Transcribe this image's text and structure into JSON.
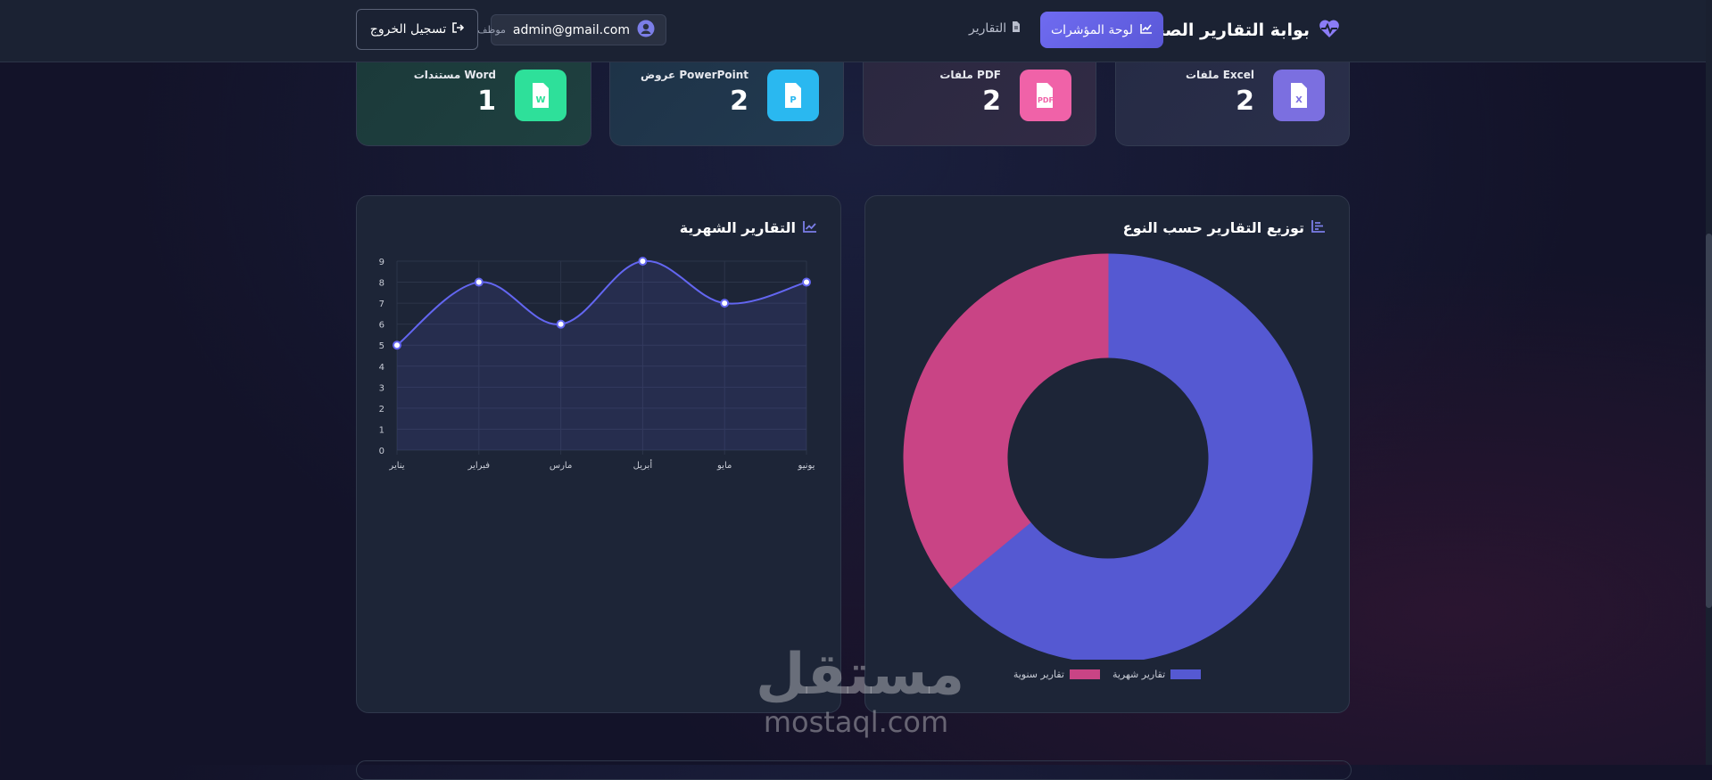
{
  "navbar": {
    "brand_title": "بوابة التقارير الصحية",
    "brand_icon": "heart-pulse-icon",
    "nav_items": [
      {
        "label": "لوحة المؤشرات",
        "icon": "chart-line-icon",
        "active": true
      },
      {
        "label": "التقارير",
        "icon": "file-icon",
        "active": false
      }
    ],
    "user": {
      "email": "admin@gmail.com",
      "role": "موظف",
      "icon": "user-circle-icon"
    },
    "logout_label": "تسجيل الخروج"
  },
  "stats": [
    {
      "label": "ملفات Excel",
      "value": "2",
      "icon": "excel-file-icon",
      "badge": "X",
      "color": "#7b6fe0"
    },
    {
      "label": "ملفات PDF",
      "value": "2",
      "icon": "pdf-file-icon",
      "badge": "PDF",
      "color": "#f062a8"
    },
    {
      "label": "عروض PowerPoint",
      "value": "2",
      "icon": "powerpoint-file-icon",
      "badge": "P",
      "color": "#2ab8f0"
    },
    {
      "label": "مستندات Word",
      "value": "1",
      "icon": "word-file-icon",
      "badge": "W",
      "color": "#2ee09a"
    }
  ],
  "pie_panel": {
    "title": "توزيع التقارير حسب النوع",
    "icon": "chart-bar-icon"
  },
  "line_panel": {
    "title": "التقارير الشهرية",
    "icon": "chart-line-icon"
  },
  "chart_data": [
    {
      "type": "pie",
      "variant": "doughnut",
      "labels": [
        "تقارير شهرية",
        "تقارير سنوية"
      ],
      "values": [
        64,
        36
      ],
      "colors": [
        "#5559d2",
        "#c94485"
      ],
      "legend": "bottom"
    },
    {
      "type": "line",
      "categories": [
        "يناير",
        "فبراير",
        "مارس",
        "أبريل",
        "مايو",
        "يونيو"
      ],
      "values": [
        5,
        8,
        6,
        9,
        7,
        8
      ],
      "ylim": [
        0,
        9
      ],
      "yticks": [
        "0",
        "1",
        "2",
        "3",
        "4",
        "5",
        "6",
        "7",
        "8",
        "9"
      ],
      "color": "#6366f1",
      "fill": true,
      "grid": true
    }
  ],
  "watermark": {
    "arabic": "مستقل",
    "latin": "mostaql.com"
  }
}
